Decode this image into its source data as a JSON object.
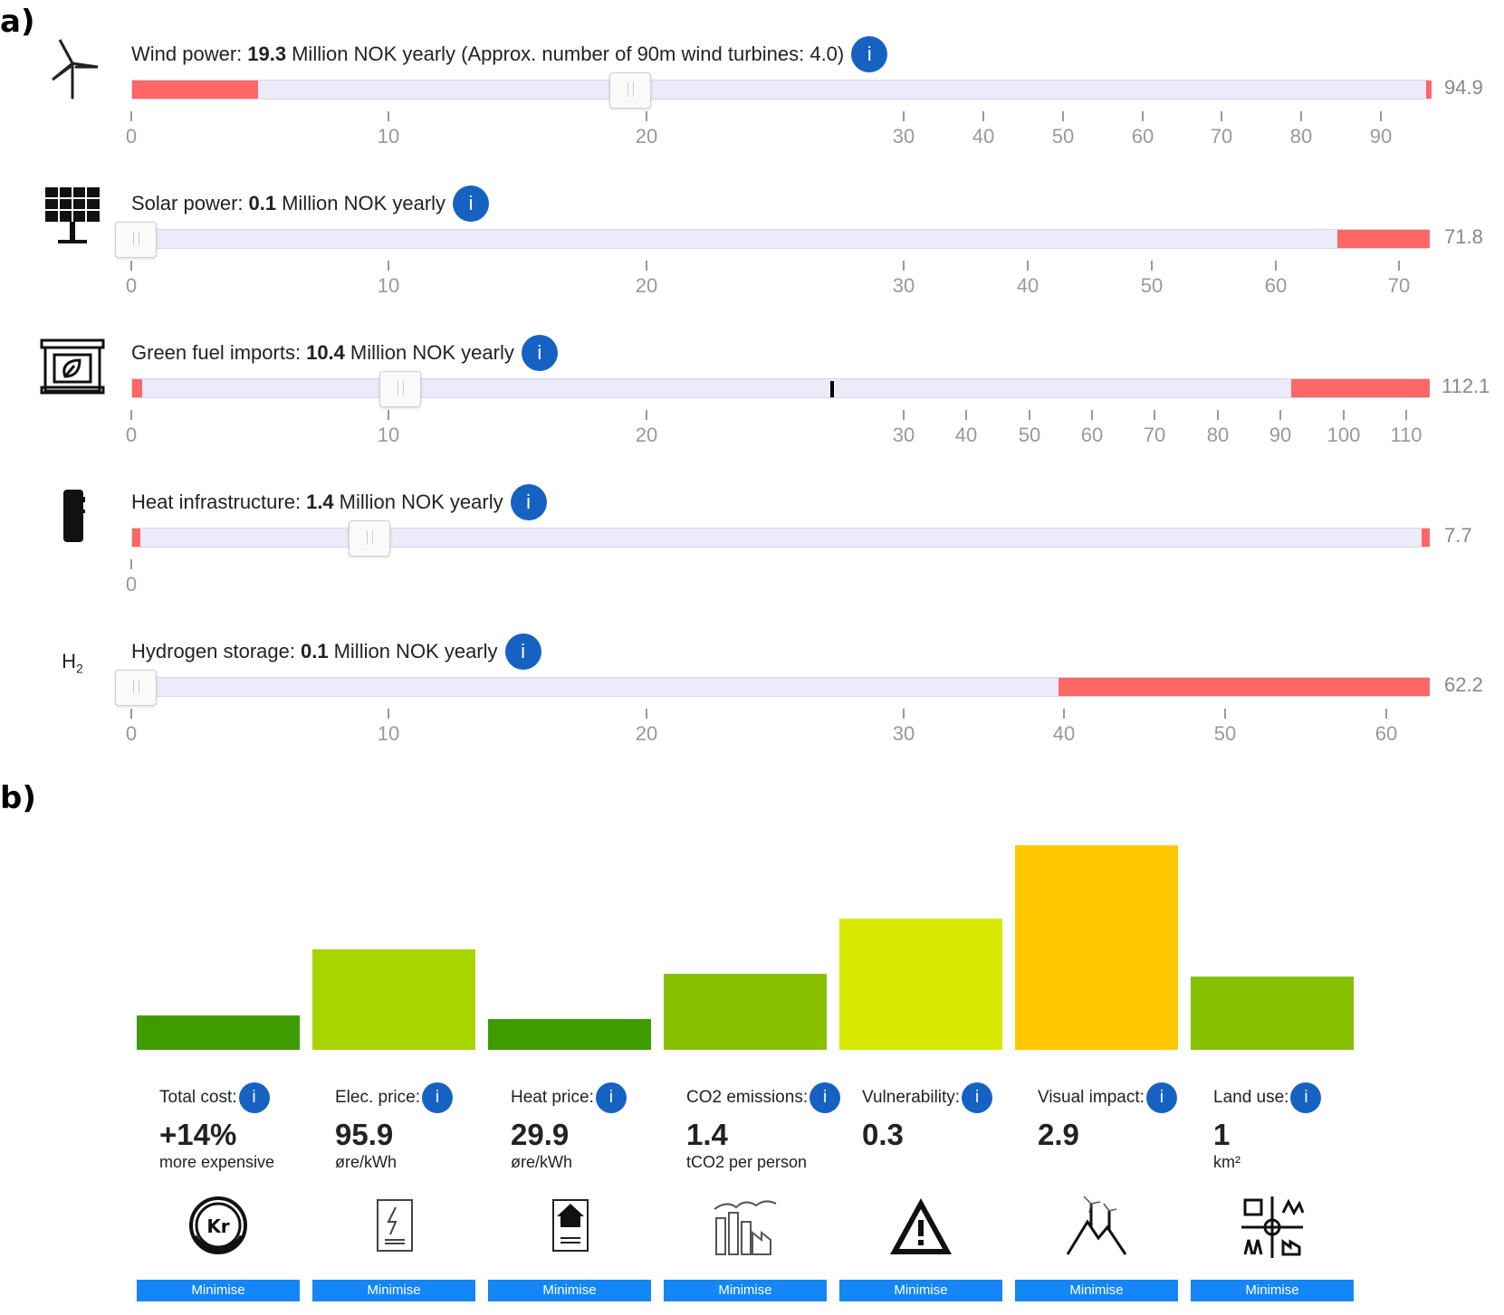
{
  "labels": {
    "a": "a)",
    "b": "b)"
  },
  "sliders": [
    {
      "name": "wind",
      "title": "Wind power:",
      "value": "19.3",
      "suffix": "Million NOK yearly (Approx. number of 90m wind turbines: 4.0)",
      "info": "i",
      "max_label": "94.9",
      "max": 94.9,
      "selected": 19.3,
      "ticks": [
        "0",
        "10",
        "20",
        "30",
        "40",
        "50",
        "60",
        "70",
        "80",
        "90"
      ],
      "tick_values": [
        0,
        10,
        20,
        30,
        40,
        50,
        60,
        70,
        80,
        90
      ],
      "red_ranges": [
        [
          0,
          4.9
        ],
        [
          94.5,
          94.9
        ]
      ],
      "marker": null
    },
    {
      "name": "solar",
      "title": "Solar power:",
      "value": "0.1",
      "suffix": "Million NOK yearly",
      "info": "i",
      "max_label": "71.8",
      "max": 71.8,
      "selected": 0.1,
      "ticks": [
        "0",
        "10",
        "20",
        "30",
        "40",
        "50",
        "60",
        "70"
      ],
      "tick_values": [
        0,
        10,
        20,
        30,
        40,
        50,
        60,
        70
      ],
      "red_ranges": [
        [
          64.9,
          71.8
        ]
      ],
      "marker": null
    },
    {
      "name": "greenfuel",
      "title": "Green fuel imports:",
      "value": "10.4",
      "suffix": "Million NOK yearly",
      "info": "i",
      "max_label": "112.1",
      "max": 112.1,
      "selected": 10.4,
      "ticks": [
        "0",
        "10",
        "20",
        "30",
        "40",
        "50",
        "60",
        "70",
        "80",
        "90",
        "100",
        "110"
      ],
      "tick_values": [
        0,
        10,
        20,
        30,
        40,
        50,
        60,
        70,
        80,
        90,
        100,
        110
      ],
      "red_ranges": [
        [
          0,
          0.4
        ],
        [
          91.5,
          112.1
        ]
      ],
      "marker": 27.2
    },
    {
      "name": "heat",
      "title": "Heat infrastructure:",
      "value": "1.4",
      "suffix": "Million NOK yearly",
      "info": "i",
      "max_label": "7.7",
      "max": 7.7,
      "selected": 1.4,
      "ticks": [
        "0"
      ],
      "tick_values": [
        0
      ],
      "red_ranges": [
        [
          0,
          0.05
        ],
        [
          7.65,
          7.7
        ]
      ],
      "marker": null
    },
    {
      "name": "hydrogen",
      "title": "Hydrogen storage:",
      "value": "0.1",
      "suffix": "Million NOK yearly",
      "info": "i",
      "max_label": "62.2",
      "max": 62.2,
      "selected": 0.1,
      "ticks": [
        "0",
        "10",
        "20",
        "30",
        "40",
        "50",
        "60"
      ],
      "tick_values": [
        0,
        10,
        20,
        30,
        40,
        50,
        60
      ],
      "red_ranges": [
        [
          39.6,
          62.2
        ]
      ],
      "marker": null
    }
  ],
  "hydrogen_icon_text": {
    "h": "H",
    "sub": "2"
  },
  "metrics": [
    {
      "name": "total-cost",
      "label": "Total cost:",
      "value": "+14%",
      "unit": "more expensive",
      "button": "Minimise",
      "bar_level": 0.17,
      "color": "#3f9c00"
    },
    {
      "name": "elec-price",
      "label": "Elec. price:",
      "value": "95.9",
      "unit": "øre/kWh",
      "button": "Minimise",
      "bar_level": 0.49,
      "color": "#a8d400"
    },
    {
      "name": "heat-price",
      "label": "Heat price:",
      "value": "29.9",
      "unit": "øre/kWh",
      "button": "Minimise",
      "bar_level": 0.15,
      "color": "#3f9c00"
    },
    {
      "name": "co2-emissions",
      "label": "CO2 emissions:",
      "value": "1.4",
      "unit": "tCO2 per person",
      "button": "Minimise",
      "bar_level": 0.37,
      "color": "#86c000"
    },
    {
      "name": "vulnerability",
      "label": "Vulnerability:",
      "value": "0.3",
      "unit": "",
      "button": "Minimise",
      "bar_level": 0.64,
      "color": "#d7e900"
    },
    {
      "name": "visual-impact",
      "label": "Visual impact:",
      "value": "2.9",
      "unit": "",
      "button": "Minimise",
      "bar_level": 1.0,
      "color": "#ffc800"
    },
    {
      "name": "land-use",
      "label": "Land use:",
      "value": "1",
      "unit": "km²",
      "button": "Minimise",
      "bar_level": 0.36,
      "color": "#86c000"
    }
  ],
  "coin_text": "Kr"
}
